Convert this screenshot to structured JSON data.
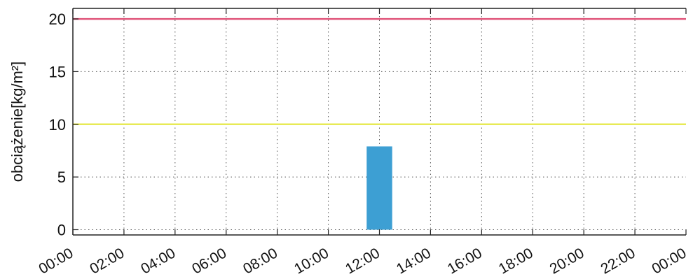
{
  "chart_data": {
    "type": "bar",
    "ylabel": "obciążenie[kg/m²]",
    "xlabel": "",
    "xlim": [
      0,
      24
    ],
    "ylim": [
      -0.5,
      21
    ],
    "x_ticks": [
      {
        "value": 0,
        "label": "00:00"
      },
      {
        "value": 2,
        "label": "02:00"
      },
      {
        "value": 4,
        "label": "04:00"
      },
      {
        "value": 6,
        "label": "06:00"
      },
      {
        "value": 8,
        "label": "08:00"
      },
      {
        "value": 10,
        "label": "10:00"
      },
      {
        "value": 12,
        "label": "12:00"
      },
      {
        "value": 14,
        "label": "14:00"
      },
      {
        "value": 16,
        "label": "16:00"
      },
      {
        "value": 18,
        "label": "18:00"
      },
      {
        "value": 20,
        "label": "20:00"
      },
      {
        "value": 22,
        "label": "22:00"
      },
      {
        "value": 24,
        "label": "00:00"
      }
    ],
    "y_ticks": [
      {
        "value": 0,
        "label": "0"
      },
      {
        "value": 5,
        "label": "5"
      },
      {
        "value": 10,
        "label": "10"
      },
      {
        "value": 15,
        "label": "15"
      },
      {
        "value": 20,
        "label": "20"
      }
    ],
    "grid": true,
    "bars": [
      {
        "start": 11.5,
        "end": 12.5,
        "value": 7.9,
        "color": "#3d9fd3"
      }
    ],
    "reference_lines": [
      {
        "value": 20,
        "color": "#e0557a"
      },
      {
        "value": 10,
        "color": "#e7ea55"
      }
    ]
  }
}
